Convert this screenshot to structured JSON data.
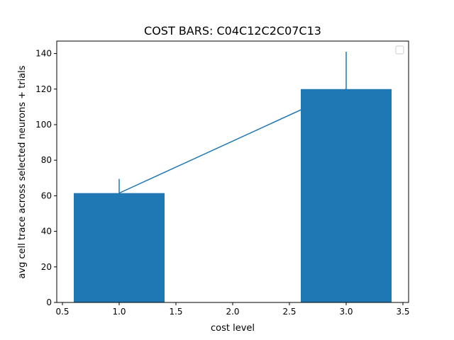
{
  "chart_data": {
    "type": "bar",
    "title": "COST BARS: C04C12C2C07C13",
    "xlabel": "cost level",
    "ylabel": "avg cell trace across selected neurons + trials",
    "x": [
      1.0,
      3.0
    ],
    "values": [
      61.5,
      120.0
    ],
    "errors": [
      8.0,
      21.0
    ],
    "bar_width": 0.8,
    "line_series": {
      "x": [
        1.0,
        3.0
      ],
      "y": [
        61.5,
        120.0
      ]
    },
    "xlim": [
      0.45,
      3.55
    ],
    "ylim": [
      0,
      147
    ],
    "xticks": [
      0.5,
      1.0,
      1.5,
      2.0,
      2.5,
      3.0,
      3.5
    ],
    "xtick_labels": [
      "0.5",
      "1.0",
      "1.5",
      "2.0",
      "2.5",
      "3.0",
      "3.5"
    ],
    "yticks": [
      0,
      20,
      40,
      60,
      80,
      100,
      120,
      140
    ],
    "ytick_labels": [
      "0",
      "20",
      "40",
      "60",
      "80",
      "100",
      "120",
      "140"
    ],
    "legend": {
      "placement": "top-right",
      "entries": []
    },
    "grid": false,
    "colors": {
      "bar": "#1f77b4",
      "line": "#1f77b4",
      "error": "#1f77b4",
      "axis": "#000000"
    }
  }
}
